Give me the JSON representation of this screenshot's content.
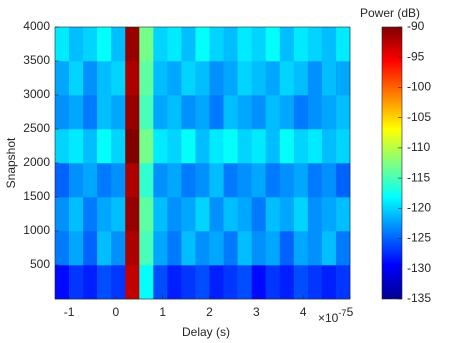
{
  "chart_data": {
    "type": "heatmap",
    "x_label": "Delay (s)",
    "y_label": "Snapshot",
    "x_multiplier": "×10",
    "x_multiplier_exponent": "-7",
    "colorbar_label": "Power (dB)",
    "colormap": "jet",
    "xlim": [
      -1.3,
      5
    ],
    "xticks": [
      -1,
      0,
      1,
      2,
      3,
      4,
      5
    ],
    "ylim": [
      0,
      4000
    ],
    "yticks": [
      500,
      1000,
      1500,
      2000,
      2500,
      3000,
      3500,
      4000
    ],
    "clim": [
      -135,
      -90
    ],
    "cticks": [
      -135,
      -130,
      -125,
      -120,
      -115,
      -110,
      -105,
      -100,
      -95,
      -90
    ],
    "x": [
      -1.15,
      -0.85,
      -0.55,
      -0.25,
      0.05,
      0.35,
      0.65,
      0.95,
      1.25,
      1.55,
      1.85,
      2.15,
      2.45,
      2.75,
      3.05,
      3.35,
      3.65,
      3.95,
      4.25,
      4.55,
      4.85
    ],
    "y": [
      250,
      750,
      1250,
      1750,
      2250,
      2750,
      3250,
      3750
    ],
    "z": [
      [
        -129,
        -127,
        -128,
        -126,
        -127,
        -93,
        -118,
        -126,
        -128,
        -127,
        -126,
        -128,
        -127,
        -126,
        -129,
        -127,
        -128,
        -126,
        -127,
        -128,
        -127
      ],
      [
        -124,
        -122,
        -125,
        -121,
        -123,
        -92,
        -115,
        -122,
        -124,
        -121,
        -123,
        -122,
        -124,
        -121,
        -123,
        -122,
        -125,
        -122,
        -123,
        -121,
        -124
      ],
      [
        -123,
        -121,
        -124,
        -122,
        -121,
        -91,
        -114,
        -121,
        -123,
        -122,
        -120,
        -123,
        -121,
        -122,
        -124,
        -121,
        -122,
        -120,
        -123,
        -122,
        -121
      ],
      [
        -125,
        -123,
        -122,
        -124,
        -123,
        -92,
        -116,
        -123,
        -122,
        -124,
        -123,
        -121,
        -124,
        -123,
        -122,
        -124,
        -123,
        -122,
        -124,
        -123,
        -125
      ],
      [
        -120,
        -119,
        -121,
        -118,
        -120,
        -90,
        -113,
        -119,
        -120,
        -118,
        -121,
        -119,
        -118,
        -120,
        -119,
        -121,
        -118,
        -120,
        -119,
        -121,
        -120
      ],
      [
        -123,
        -122,
        -124,
        -121,
        -122,
        -91,
        -115,
        -122,
        -121,
        -123,
        -122,
        -124,
        -121,
        -122,
        -123,
        -121,
        -122,
        -124,
        -123,
        -122,
        -121
      ],
      [
        -122,
        -120,
        -123,
        -121,
        -120,
        -92,
        -114,
        -121,
        -122,
        -120,
        -121,
        -123,
        -122,
        -120,
        -121,
        -122,
        -120,
        -121,
        -123,
        -121,
        -122
      ],
      [
        -119,
        -121,
        -120,
        -118,
        -121,
        -91,
        -113,
        -120,
        -119,
        -121,
        -118,
        -120,
        -121,
        -119,
        -120,
        -118,
        -121,
        -119,
        -120,
        -121,
        -119
      ]
    ]
  }
}
